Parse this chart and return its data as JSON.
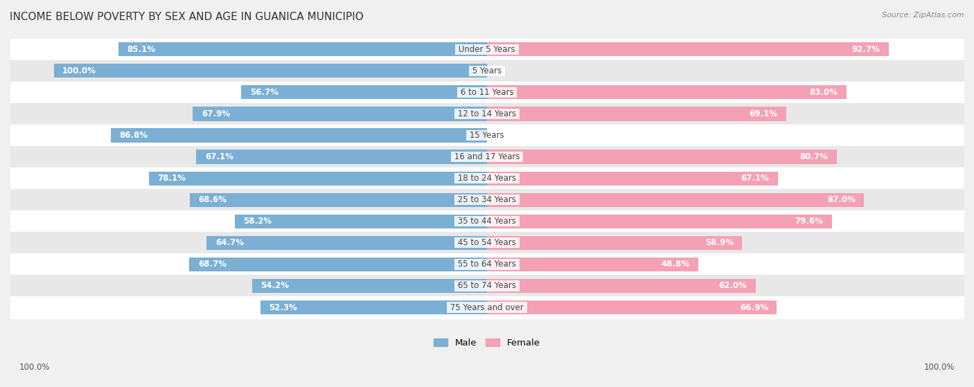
{
  "title": "INCOME BELOW POVERTY BY SEX AND AGE IN GUANICA MUNICIPIO",
  "source": "Source: ZipAtlas.com",
  "categories": [
    "Under 5 Years",
    "5 Years",
    "6 to 11 Years",
    "12 to 14 Years",
    "15 Years",
    "16 and 17 Years",
    "18 to 24 Years",
    "25 to 34 Years",
    "35 to 44 Years",
    "45 to 54 Years",
    "55 to 64 Years",
    "65 to 74 Years",
    "75 Years and over"
  ],
  "male_values": [
    85.1,
    100.0,
    56.7,
    67.9,
    86.8,
    67.1,
    78.1,
    68.6,
    58.2,
    64.7,
    68.7,
    54.2,
    52.3
  ],
  "female_values": [
    92.7,
    0.0,
    83.0,
    69.1,
    0.0,
    80.7,
    67.1,
    87.0,
    79.6,
    58.9,
    48.8,
    62.0,
    66.9
  ],
  "male_color": "#7bafd4",
  "female_color": "#f4a0b5",
  "male_label": "Male",
  "female_label": "Female",
  "bg_color": "#f0f0f0",
  "row_color_even": "#ffffff",
  "row_color_odd": "#e8e8e8",
  "max_value": 100.0,
  "label_fontsize": 8.5,
  "title_fontsize": 11,
  "source_fontsize": 8,
  "bar_height": 0.65
}
